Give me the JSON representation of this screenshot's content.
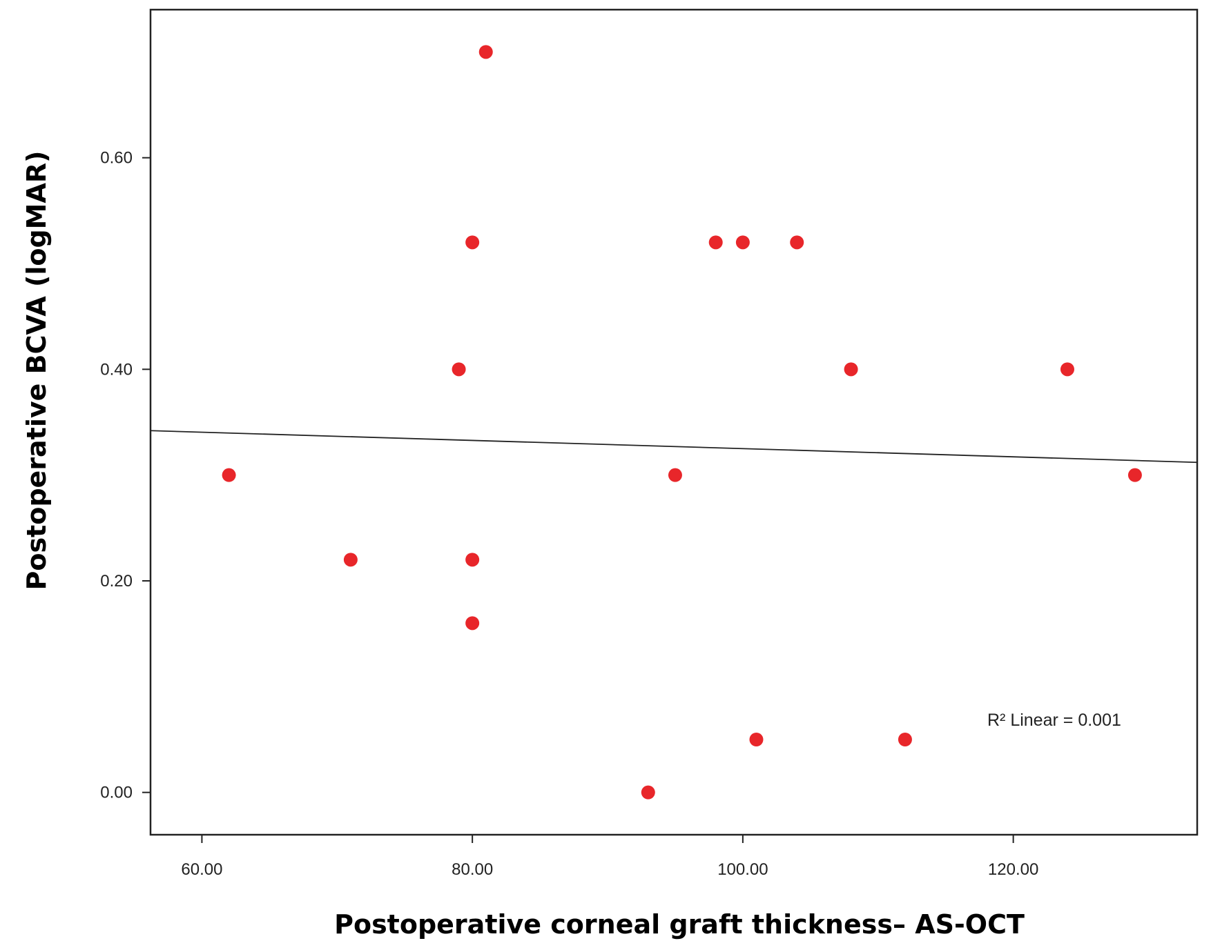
{
  "chart_data": {
    "type": "scatter",
    "title": "",
    "xlabel": "Postoperative corneal graft thickness– AS-OCT",
    "ylabel": "Postoperative BCVA (logMAR)",
    "xlim": [
      56.2,
      133.6
    ],
    "ylim": [
      -0.04,
      0.74
    ],
    "xticks": [
      60,
      80,
      100,
      120
    ],
    "xtick_labels": [
      "60.00",
      "80.00",
      "100.00",
      "120.00"
    ],
    "yticks": [
      0,
      0.2,
      0.4,
      0.6
    ],
    "ytick_labels": [
      "0.00",
      "0.20",
      "0.40",
      "0.60"
    ],
    "grid": false,
    "point_color": "#e8262a",
    "points": [
      {
        "x": 62,
        "y": 0.3
      },
      {
        "x": 71,
        "y": 0.22
      },
      {
        "x": 79,
        "y": 0.4
      },
      {
        "x": 80,
        "y": 0.52
      },
      {
        "x": 80,
        "y": 0.22
      },
      {
        "x": 80,
        "y": 0.16
      },
      {
        "x": 81,
        "y": 0.7
      },
      {
        "x": 93,
        "y": 0.0
      },
      {
        "x": 95,
        "y": 0.3
      },
      {
        "x": 98,
        "y": 0.52
      },
      {
        "x": 100,
        "y": 0.52
      },
      {
        "x": 101,
        "y": 0.05
      },
      {
        "x": 104,
        "y": 0.52
      },
      {
        "x": 108,
        "y": 0.4
      },
      {
        "x": 112,
        "y": 0.05
      },
      {
        "x": 124,
        "y": 0.4
      },
      {
        "x": 129,
        "y": 0.3
      }
    ],
    "fit_line": {
      "x": [
        56.2,
        133.6
      ],
      "y": [
        0.342,
        0.312
      ]
    },
    "annotation": {
      "r2_label": "R² Linear = ",
      "r2_value": "0.001"
    }
  }
}
